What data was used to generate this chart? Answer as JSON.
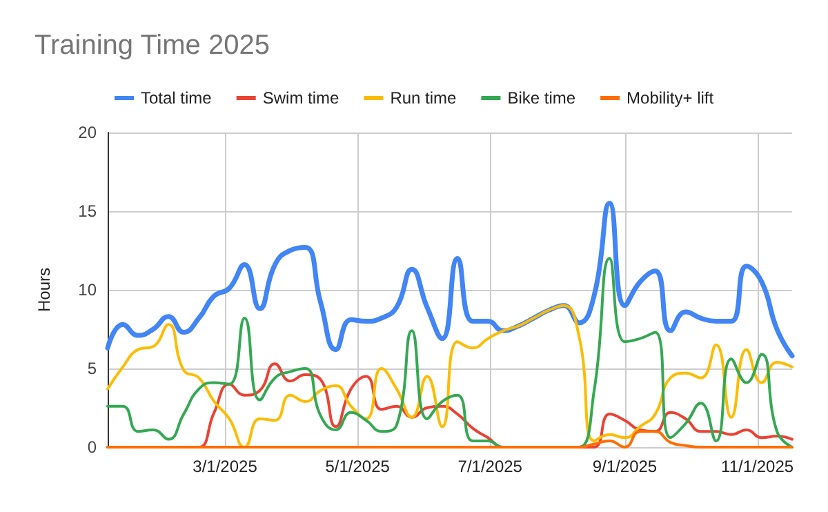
{
  "chart_data": {
    "type": "line",
    "title": "Training Time 2025",
    "ylabel": "Hours",
    "x": [
      "2025-01-06",
      "2025-01-13",
      "2025-01-20",
      "2025-01-27",
      "2025-02-03",
      "2025-02-10",
      "2025-02-17",
      "2025-02-24",
      "2025-03-03",
      "2025-03-10",
      "2025-03-17",
      "2025-03-24",
      "2025-03-31",
      "2025-04-07",
      "2025-04-14",
      "2025-04-21",
      "2025-04-28",
      "2025-05-05",
      "2025-05-12",
      "2025-05-19",
      "2025-05-26",
      "2025-06-02",
      "2025-06-09",
      "2025-06-16",
      "2025-06-23",
      "2025-06-30",
      "2025-07-07",
      "2025-07-14",
      "2025-07-21",
      "2025-07-28",
      "2025-08-04",
      "2025-08-11",
      "2025-08-18",
      "2025-08-25",
      "2025-09-01",
      "2025-09-08",
      "2025-09-15",
      "2025-09-22",
      "2025-09-29",
      "2025-10-06",
      "2025-10-13",
      "2025-10-20",
      "2025-10-27",
      "2025-11-03",
      "2025-11-10",
      "2025-11-17"
    ],
    "series": [
      {
        "name": "Total time",
        "color": "#4285f4",
        "values": [
          6.3,
          7.8,
          7.1,
          7.5,
          8.3,
          7.3,
          8.2,
          9.6,
          10.1,
          11.6,
          8.8,
          11.6,
          12.5,
          12.7,
          9.2,
          6.2,
          8.1,
          8.0,
          8.2,
          8.9,
          11.3,
          8.9,
          6.9,
          12.0,
          8.0,
          8.0,
          7.4,
          7.7,
          8.2,
          8.7,
          9.0,
          7.9,
          9.7,
          15.5,
          9.0,
          10.5,
          11.2,
          7.4,
          8.6,
          8.2,
          8.0,
          8.0,
          11.5,
          10.5,
          7.5,
          5.8
        ]
      },
      {
        "name": "Swim time",
        "color": "#ea4335",
        "values": [
          0,
          0,
          0,
          0,
          0,
          0,
          0,
          2.2,
          4.0,
          3.3,
          3.6,
          5.3,
          4.2,
          4.6,
          4.3,
          1.3,
          3.7,
          4.5,
          2.4,
          2.6,
          1.9,
          2.5,
          2.6,
          2.1,
          1.2,
          0.6,
          0,
          0,
          0,
          0,
          0,
          0,
          0,
          2.1,
          1.7,
          1.1,
          1.0,
          2.2,
          1.8,
          1.0,
          1.0,
          0.8,
          1.1,
          0.6,
          0.7,
          0.5
        ]
      },
      {
        "name": "Run time",
        "color": "#fbbc04",
        "values": [
          3.7,
          5.1,
          6.2,
          6.4,
          7.8,
          4.9,
          4.4,
          2.9,
          1.8,
          0,
          1.8,
          1.7,
          3.3,
          2.9,
          3.6,
          3.9,
          2.6,
          1.8,
          5.0,
          3.7,
          1.9,
          4.5,
          1.3,
          6.7,
          6.3,
          6.9,
          7.4,
          7.7,
          8.2,
          8.7,
          9.0,
          7.0,
          0.4,
          0.8,
          0.6,
          1.3,
          2.1,
          4.4,
          4.7,
          4.4,
          6.5,
          1.9,
          6.2,
          4.1,
          5.4,
          5.1
        ]
      },
      {
        "name": "Bike time",
        "color": "#34a853",
        "values": [
          2.6,
          2.6,
          1.0,
          1.1,
          0.5,
          2.1,
          3.7,
          4.1,
          4.0,
          8.2,
          3.0,
          4.4,
          4.8,
          5.0,
          2.0,
          1.1,
          2.2,
          1.7,
          1.0,
          1.4,
          7.4,
          1.8,
          2.9,
          3.3,
          0.4,
          0.4,
          0,
          0,
          0,
          0,
          0,
          0,
          3.7,
          12.0,
          6.7,
          6.9,
          7.3,
          0.6,
          1.5,
          2.8,
          0.4,
          5.6,
          4.1,
          5.9,
          1.0,
          0
        ]
      },
      {
        "name": "Mobility+ lift",
        "color": "#ff6d01",
        "values": [
          0,
          0,
          0,
          0,
          0,
          0,
          0,
          0,
          0,
          0,
          0,
          0,
          0,
          0,
          0,
          0,
          0,
          0,
          0,
          0,
          0,
          0,
          0,
          0,
          0,
          0,
          0,
          0,
          0,
          0,
          0,
          0,
          0.2,
          0.4,
          0,
          1.0,
          1.0,
          0.3,
          0.1,
          0,
          0,
          0,
          0,
          0,
          0,
          0
        ]
      }
    ],
    "xlim": [
      "2025-01-06",
      "2025-11-17"
    ],
    "xticks": [
      {
        "value": "2025-03-01",
        "label": "3/1/2025"
      },
      {
        "value": "2025-05-01",
        "label": "5/1/2025"
      },
      {
        "value": "2025-07-01",
        "label": "7/1/2025"
      },
      {
        "value": "2025-09-01",
        "label": "9/1/2025"
      },
      {
        "value": "2025-11-01",
        "label": "11/1/2025"
      }
    ],
    "ylim": [
      0,
      20
    ],
    "yticks": [
      0,
      5,
      10,
      15,
      20
    ],
    "grid": true,
    "legend": "top",
    "marker": "none",
    "line_style": "solid"
  }
}
